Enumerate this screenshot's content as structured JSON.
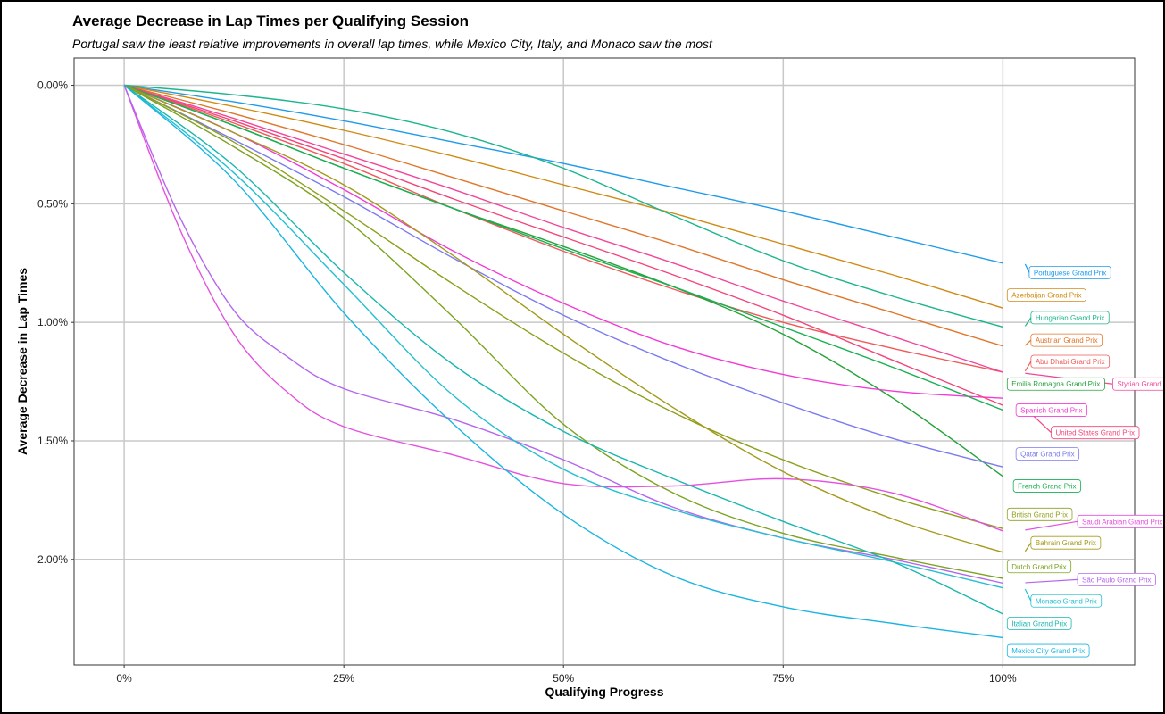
{
  "chart_data": {
    "type": "line",
    "title": "Average Decrease in Lap Times per Qualifying Session",
    "subtitle": "Portugal saw the least relative improvements in overall lap times, while Mexico City, Italy, and Monaco saw the most",
    "xlabel": "Qualifying Progress",
    "ylabel": "Average Decrease in Lap Times",
    "x_ticks": [
      "0%",
      "25%",
      "50%",
      "75%",
      "100%"
    ],
    "y_ticks": [
      "0.00%",
      "0.50%",
      "1.00%",
      "1.50%",
      "2.00%"
    ],
    "x_tick_values": [
      0,
      25,
      50,
      75,
      100
    ],
    "y_tick_values": [
      0,
      0.5,
      1.0,
      1.5,
      2.0
    ],
    "xlim": [
      -5.7,
      115
    ],
    "ylim": [
      2.445,
      -0.115
    ],
    "grid": true,
    "legend": "direct labels at right end of lines",
    "series": [
      {
        "name": "Portuguese Grand Prix",
        "color": "#1F9BEA",
        "label_x": 103,
        "label_y": 0.79,
        "points": [
          [
            0,
            0
          ],
          [
            12.5,
            0.07
          ],
          [
            25,
            0.15
          ],
          [
            37.5,
            0.24
          ],
          [
            50,
            0.33
          ],
          [
            62.5,
            0.43
          ],
          [
            75,
            0.53
          ],
          [
            87.5,
            0.64
          ],
          [
            100,
            0.75
          ]
        ]
      },
      {
        "name": "Azerbaijan Grand Prix",
        "color": "#D08A14",
        "label_x": 100.5,
        "label_y": 0.885,
        "points": [
          [
            0,
            0
          ],
          [
            12.5,
            0.09
          ],
          [
            25,
            0.19
          ],
          [
            37.5,
            0.3
          ],
          [
            50,
            0.42
          ],
          [
            62.5,
            0.54
          ],
          [
            75,
            0.67
          ],
          [
            87.5,
            0.8
          ],
          [
            100,
            0.94
          ]
        ]
      },
      {
        "name": "Hungarian Grand Prix",
        "color": "#1CB58C",
        "label_x": 103.2,
        "label_y": 0.98,
        "points": [
          [
            0,
            0
          ],
          [
            12.5,
            0.04
          ],
          [
            25,
            0.1
          ],
          [
            37.5,
            0.2
          ],
          [
            50,
            0.35
          ],
          [
            62.5,
            0.55
          ],
          [
            75,
            0.74
          ],
          [
            87.5,
            0.89
          ],
          [
            100,
            1.02
          ]
        ]
      },
      {
        "name": "Austrian Grand Prix",
        "color": "#E0762A",
        "label_x": 103.2,
        "label_y": 1.075,
        "points": [
          [
            0,
            0
          ],
          [
            12.5,
            0.12
          ],
          [
            25,
            0.25
          ],
          [
            37.5,
            0.39
          ],
          [
            50,
            0.53
          ],
          [
            62.5,
            0.67
          ],
          [
            75,
            0.82
          ],
          [
            87.5,
            0.96
          ],
          [
            100,
            1.1
          ]
        ]
      },
      {
        "name": "Abu Dhabi Grand Prix",
        "color": "#EF5A5A",
        "label_x": 103.2,
        "label_y": 1.165,
        "points": [
          [
            0,
            0
          ],
          [
            12.5,
            0.16
          ],
          [
            25,
            0.33
          ],
          [
            37.5,
            0.52
          ],
          [
            50,
            0.7
          ],
          [
            62.5,
            0.86
          ],
          [
            75,
            1.0
          ],
          [
            87.5,
            1.11
          ],
          [
            100,
            1.21
          ]
        ]
      },
      {
        "name": "Styrian Grand Prix",
        "color": "#F2469B",
        "label_x": 112.5,
        "label_y": 1.26,
        "points": [
          [
            0,
            0
          ],
          [
            12.5,
            0.14
          ],
          [
            25,
            0.29
          ],
          [
            37.5,
            0.44
          ],
          [
            50,
            0.6
          ],
          [
            62.5,
            0.75
          ],
          [
            75,
            0.91
          ],
          [
            87.5,
            1.06
          ],
          [
            100,
            1.21
          ]
        ]
      },
      {
        "name": "Emilia Romagna Grand Prix",
        "color": "#25A33A",
        "label_x": 100.5,
        "label_y": 1.26,
        "points": [
          [
            0,
            0
          ],
          [
            12.5,
            0.17
          ],
          [
            25,
            0.35
          ],
          [
            37.5,
            0.52
          ],
          [
            50,
            0.68
          ],
          [
            62.5,
            0.85
          ],
          [
            75,
            1.05
          ],
          [
            87.5,
            1.32
          ],
          [
            100,
            1.65
          ]
        ]
      },
      {
        "name": "Spanish Grand Prix",
        "color": "#F23BD6",
        "label_x": 101.5,
        "label_y": 1.37,
        "points": [
          [
            0,
            0
          ],
          [
            12.5,
            0.2
          ],
          [
            25,
            0.44
          ],
          [
            37.5,
            0.7
          ],
          [
            50,
            0.92
          ],
          [
            62.5,
            1.1
          ],
          [
            75,
            1.22
          ],
          [
            87.5,
            1.29
          ],
          [
            100,
            1.32
          ]
        ]
      },
      {
        "name": "United States Grand Prix",
        "color": "#F2457A",
        "label_x": 105.5,
        "label_y": 1.465,
        "points": [
          [
            0,
            0
          ],
          [
            12.5,
            0.15
          ],
          [
            25,
            0.31
          ],
          [
            37.5,
            0.48
          ],
          [
            50,
            0.64
          ],
          [
            62.5,
            0.8
          ],
          [
            75,
            0.97
          ],
          [
            87.5,
            1.16
          ],
          [
            100,
            1.35
          ]
        ]
      },
      {
        "name": "Qatar Grand Prix",
        "color": "#7B7AF0",
        "label_x": 101.5,
        "label_y": 1.555,
        "points": [
          [
            0,
            0
          ],
          [
            12.5,
            0.23
          ],
          [
            25,
            0.47
          ],
          [
            37.5,
            0.73
          ],
          [
            50,
            0.97
          ],
          [
            62.5,
            1.17
          ],
          [
            75,
            1.34
          ],
          [
            87.5,
            1.49
          ],
          [
            100,
            1.61
          ]
        ]
      },
      {
        "name": "French Grand Prix",
        "color": "#18B050",
        "label_x": 101.2,
        "label_y": 1.69,
        "points": [
          [
            0,
            0
          ],
          [
            12.5,
            0.17
          ],
          [
            25,
            0.35
          ],
          [
            37.5,
            0.52
          ],
          [
            50,
            0.69
          ],
          [
            62.5,
            0.85
          ],
          [
            75,
            1.02
          ],
          [
            87.5,
            1.19
          ],
          [
            100,
            1.37
          ]
        ]
      },
      {
        "name": "British Grand Prix",
        "color": "#8E9F1B",
        "label_x": 100.5,
        "label_y": 1.81,
        "points": [
          [
            0,
            0
          ],
          [
            12.5,
            0.24
          ],
          [
            25,
            0.53
          ],
          [
            37.5,
            0.84
          ],
          [
            50,
            1.13
          ],
          [
            62.5,
            1.38
          ],
          [
            75,
            1.58
          ],
          [
            87.5,
            1.74
          ],
          [
            100,
            1.87
          ]
        ]
      },
      {
        "name": "Saudi Arabian Grand Prix",
        "color": "#E451E0",
        "label_x": 108.5,
        "label_y": 1.84,
        "points": [
          [
            0,
            0
          ],
          [
            6.25,
            0.6
          ],
          [
            12.5,
            1.05
          ],
          [
            18.75,
            1.3
          ],
          [
            25,
            1.44
          ],
          [
            37.5,
            1.56
          ],
          [
            50,
            1.68
          ],
          [
            62.5,
            1.69
          ],
          [
            75,
            1.66
          ],
          [
            87.5,
            1.72
          ],
          [
            100,
            1.88
          ]
        ]
      },
      {
        "name": "Bahrain Grand Prix",
        "color": "#A39A1A",
        "label_x": 103.2,
        "label_y": 1.93,
        "points": [
          [
            0,
            0
          ],
          [
            12.5,
            0.2
          ],
          [
            25,
            0.42
          ],
          [
            37.5,
            0.72
          ],
          [
            50,
            1.05
          ],
          [
            62.5,
            1.36
          ],
          [
            75,
            1.63
          ],
          [
            87.5,
            1.83
          ],
          [
            100,
            1.97
          ]
        ]
      },
      {
        "name": "Dutch Grand Prix",
        "color": "#7BA31F",
        "label_x": 100.5,
        "label_y": 2.03,
        "points": [
          [
            0,
            0
          ],
          [
            12.5,
            0.26
          ],
          [
            25,
            0.56
          ],
          [
            37.5,
            0.98
          ],
          [
            50,
            1.43
          ],
          [
            62.5,
            1.72
          ],
          [
            75,
            1.89
          ],
          [
            87.5,
            1.99
          ],
          [
            100,
            2.08
          ]
        ]
      },
      {
        "name": "São Paulo Grand Prix",
        "color": "#B566EE",
        "label_x": 108.5,
        "label_y": 2.085,
        "points": [
          [
            0,
            0
          ],
          [
            6.25,
            0.55
          ],
          [
            12.5,
            0.95
          ],
          [
            18.75,
            1.15
          ],
          [
            25,
            1.28
          ],
          [
            37.5,
            1.41
          ],
          [
            50,
            1.58
          ],
          [
            62.5,
            1.78
          ],
          [
            75,
            1.91
          ],
          [
            87.5,
            2.0
          ],
          [
            100,
            2.1
          ]
        ]
      },
      {
        "name": "Monaco Grand Prix",
        "color": "#23BFD3",
        "label_x": 103.2,
        "label_y": 2.175,
        "points": [
          [
            0,
            0
          ],
          [
            12.5,
            0.37
          ],
          [
            25,
            0.84
          ],
          [
            37.5,
            1.31
          ],
          [
            50,
            1.62
          ],
          [
            62.5,
            1.79
          ],
          [
            75,
            1.91
          ],
          [
            87.5,
            2.01
          ],
          [
            100,
            2.12
          ]
        ]
      },
      {
        "name": "Italian Grand Prix",
        "color": "#18B7AF",
        "label_x": 100.5,
        "label_y": 2.27,
        "points": [
          [
            0,
            0
          ],
          [
            12.5,
            0.34
          ],
          [
            25,
            0.79
          ],
          [
            37.5,
            1.18
          ],
          [
            50,
            1.46
          ],
          [
            62.5,
            1.66
          ],
          [
            75,
            1.84
          ],
          [
            87.5,
            2.01
          ],
          [
            100,
            2.23
          ]
        ]
      },
      {
        "name": "Mexico City Grand Prix",
        "color": "#19B5E2",
        "label_x": 100.5,
        "label_y": 2.385,
        "points": [
          [
            0,
            0
          ],
          [
            12.5,
            0.4
          ],
          [
            25,
            0.96
          ],
          [
            37.5,
            1.43
          ],
          [
            50,
            1.81
          ],
          [
            62.5,
            2.07
          ],
          [
            75,
            2.2
          ],
          [
            87.5,
            2.27
          ],
          [
            100,
            2.33
          ]
        ]
      }
    ]
  }
}
